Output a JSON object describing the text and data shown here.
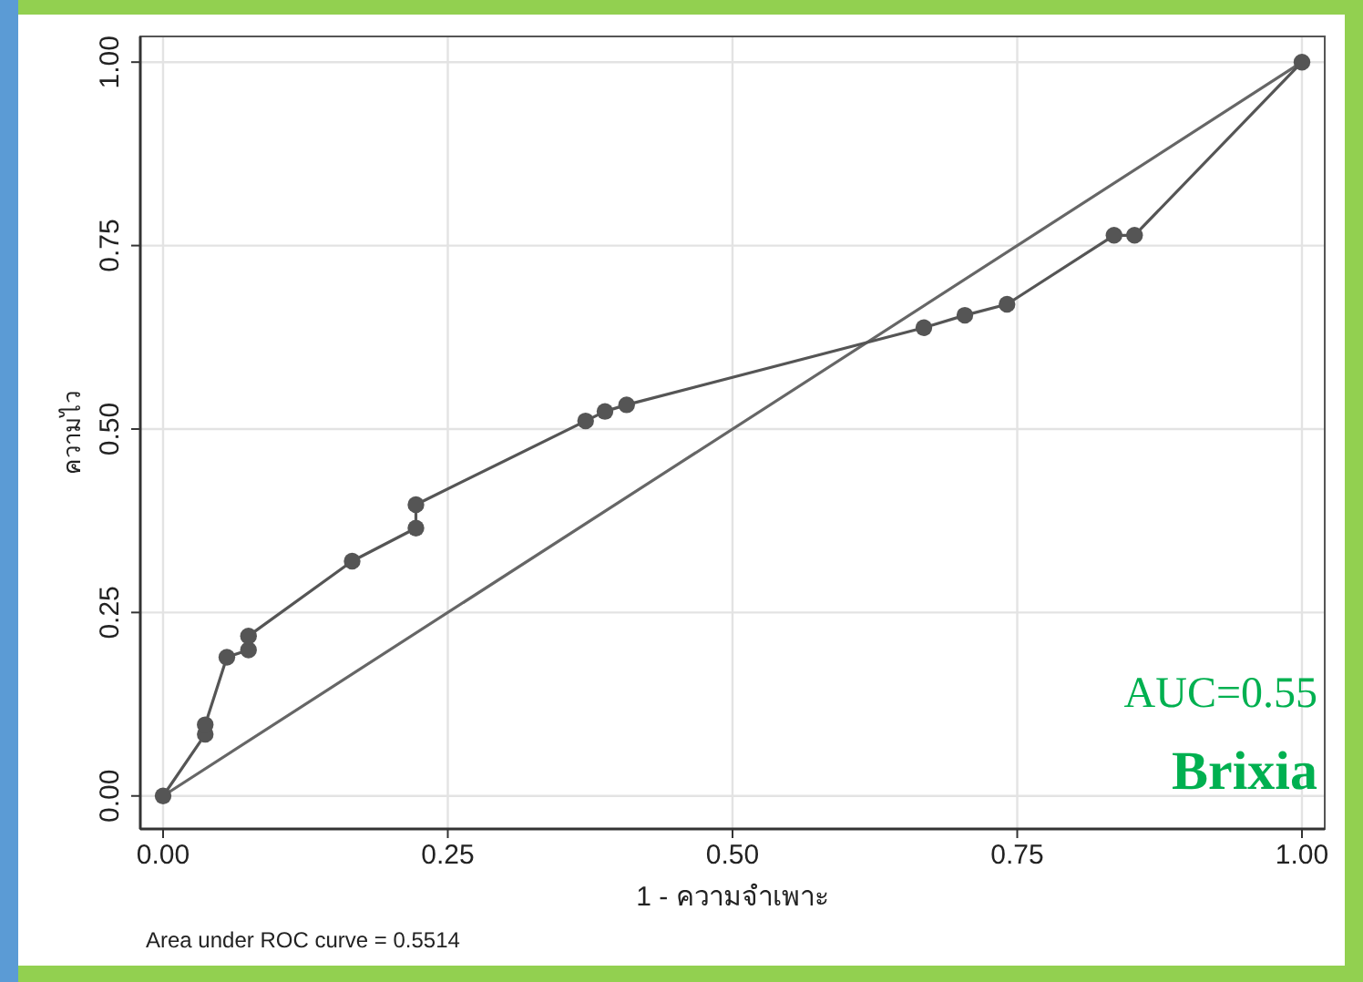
{
  "chart_data": {
    "type": "line",
    "xlabel": "1 - ความจำเพาะ",
    "ylabel": "ความไว",
    "annotations": [
      "AUC=0.55",
      "Brixia",
      "Area under ROC curve = 0.5514"
    ],
    "xlim": [
      -0.02,
      1.02
    ],
    "ylim": [
      -0.045,
      1.035
    ],
    "xticks": [
      {
        "value": 0,
        "label": "0.00"
      },
      {
        "value": 0.25,
        "label": "0.25"
      },
      {
        "value": 0.5,
        "label": "0.50"
      },
      {
        "value": 0.75,
        "label": "0.75"
      },
      {
        "value": 1,
        "label": "1.00"
      }
    ],
    "yticks": [
      {
        "value": 0,
        "label": "0.00"
      },
      {
        "value": 0.25,
        "label": "0.25"
      },
      {
        "value": 0.5,
        "label": "0.50"
      },
      {
        "value": 0.75,
        "label": "0.75"
      },
      {
        "value": 1,
        "label": "1.00"
      }
    ],
    "grid": true,
    "marker": "circle",
    "line_style": "solid",
    "series": [
      {
        "color": "#555555",
        "x": [
          0,
          0.037,
          0.037,
          0.056,
          0.075,
          0.075,
          0.166,
          0.222,
          0.222,
          0.371,
          0.388,
          0.407,
          0.668,
          0.704,
          0.741,
          0.835,
          0.853,
          1
        ],
        "values": [
          0,
          0.084,
          0.097,
          0.189,
          0.199,
          0.218,
          0.32,
          0.365,
          0.397,
          0.511,
          0.524,
          0.533,
          0.638,
          0.655,
          0.67,
          0.764,
          0.764,
          1
        ]
      },
      {
        "color": "#666666",
        "marker": "none",
        "x": [
          0,
          1
        ],
        "values": [
          0,
          1
        ]
      }
    ]
  }
}
